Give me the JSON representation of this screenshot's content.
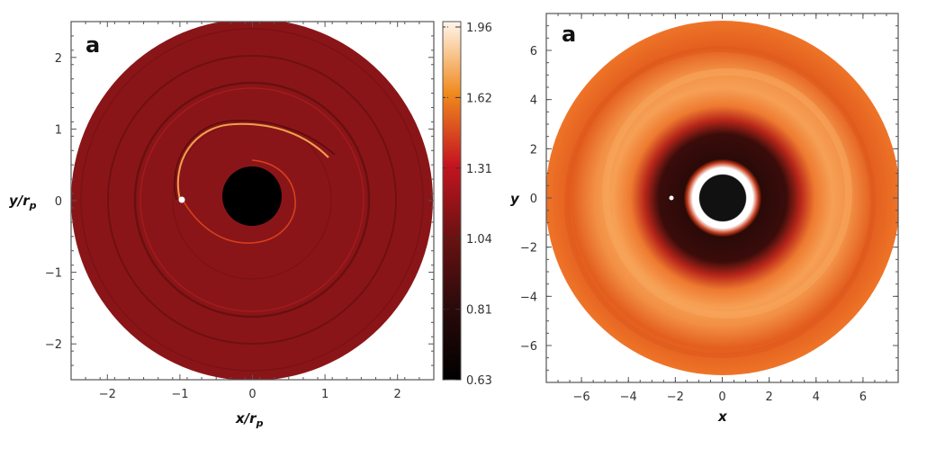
{
  "chart_data": [
    {
      "type": "heatmap",
      "panel_label": "a",
      "xlabel": "x/r",
      "xlabel_sub": "p",
      "ylabel": "y/r",
      "ylabel_sub": "p",
      "xlim": [
        -2.5,
        2.5
      ],
      "ylim": [
        -2.5,
        2.5
      ],
      "xticks": [
        "−2",
        "−1",
        "0",
        "1",
        "2"
      ],
      "yticks": [
        "2",
        "1",
        "0",
        "−1",
        "−2"
      ],
      "xtick_values": [
        -2,
        -1,
        0,
        1,
        2
      ],
      "ytick_values": [
        2,
        1,
        0,
        -1,
        -2
      ],
      "planet": {
        "x": -0.97,
        "y": 0.0
      },
      "colorbar": {
        "ticks": [
          "1.96",
          "1.62",
          "1.31",
          "1.04",
          "0.81",
          "0.63"
        ],
        "colors": [
          "#000000",
          "#2a0a0a",
          "#6a1212",
          "#c41420",
          "#f08a1e",
          "#fff6ec"
        ]
      },
      "colors": {
        "disk": "#8a1518",
        "hole": "#000000"
      }
    },
    {
      "type": "heatmap",
      "panel_label": "a",
      "xlabel": "x",
      "ylabel": "y",
      "xlim": [
        -7.5,
        7.5
      ],
      "ylim": [
        -7.5,
        7.5
      ],
      "xticks": [
        "−6",
        "−4",
        "−2",
        "0",
        "2",
        "4",
        "6"
      ],
      "yticks": [
        "6",
        "4",
        "2",
        "0",
        "−2",
        "−4",
        "−6"
      ],
      "xtick_values": [
        -6,
        -4,
        -2,
        0,
        2,
        4,
        6
      ],
      "ytick_values": [
        6,
        4,
        2,
        0,
        -2,
        -4,
        -6
      ],
      "planet": {
        "x": -2.2,
        "y": 0.0
      },
      "colors": {
        "outer": "#ec6a22",
        "band": "#f6a055",
        "gap": "#2a0a08",
        "inner_ring": "#ffffff",
        "hole": "#111111"
      }
    }
  ]
}
